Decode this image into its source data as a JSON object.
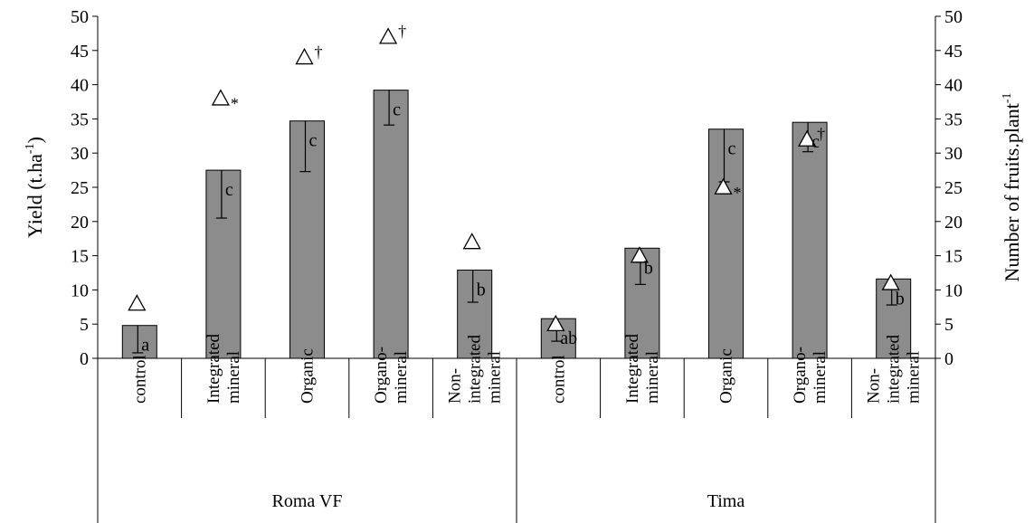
{
  "chart_data": {
    "type": "bar",
    "title": "",
    "ylabel": "Yield (t.ha-1)",
    "ylabel_parts": {
      "base": "Yield (t.ha",
      "sup": "-1",
      "close": ")"
    },
    "y2label": "Number of fruits.plant-1",
    "y2label_parts": {
      "base": "Number of fruits.plant",
      "sup": "-1"
    },
    "ylim": [
      0,
      50
    ],
    "y2lim": [
      0,
      50
    ],
    "yticks": [
      "0",
      "5",
      "10",
      "15",
      "20",
      "25",
      "30",
      "35",
      "40",
      "45",
      "50"
    ],
    "groups": [
      "Roma VF",
      "Tima"
    ],
    "categories": [
      {
        "group": "Roma VF",
        "lines": [
          "control"
        ]
      },
      {
        "group": "Roma VF",
        "lines": [
          "Integrated",
          "mineral"
        ]
      },
      {
        "group": "Roma VF",
        "lines": [
          "Organic"
        ]
      },
      {
        "group": "Roma VF",
        "lines": [
          "Organo-",
          "mineral"
        ]
      },
      {
        "group": "Roma VF",
        "lines": [
          "Non-",
          "integrated",
          "mineral"
        ]
      },
      {
        "group": "Tima",
        "lines": [
          "control"
        ]
      },
      {
        "group": "Tima",
        "lines": [
          "Integrated",
          "mineral"
        ]
      },
      {
        "group": "Tima",
        "lines": [
          "Organic"
        ]
      },
      {
        "group": "Tima",
        "lines": [
          "Organo-",
          "mineral"
        ]
      },
      {
        "group": "Tima",
        "lines": [
          "Non-",
          "integrated",
          "mineral"
        ]
      }
    ],
    "series": [
      {
        "kind": "bar",
        "axis": "left",
        "values": [
          4.8,
          27.5,
          34.7,
          39.2,
          12.9,
          5.8,
          16.1,
          33.5,
          34.5,
          11.6
        ],
        "error_low": [
          0.8,
          20.5,
          27.3,
          34.1,
          8.2,
          2.5,
          10.8,
          25.8,
          30.2,
          7.8
        ],
        "letters": [
          "a",
          "c",
          "c",
          "c",
          "b",
          "ab",
          "b",
          "c",
          "c",
          "b"
        ]
      },
      {
        "kind": "marker",
        "axis": "right",
        "marker": "triangle-icon",
        "values": [
          8,
          38,
          44,
          47,
          17,
          5,
          15,
          25,
          32,
          11
        ],
        "significance": [
          "",
          "*",
          "†",
          "†",
          "",
          "",
          "",
          "*",
          "†",
          ""
        ]
      }
    ],
    "bar_color": "#8c8c8c",
    "grid": false,
    "legend": "none"
  }
}
